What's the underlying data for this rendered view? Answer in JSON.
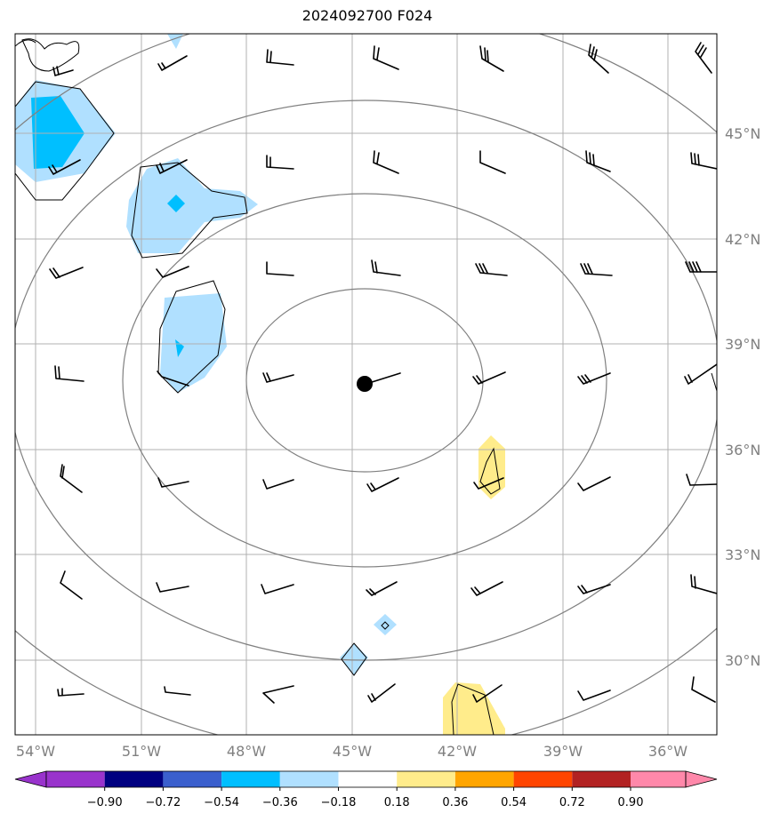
{
  "title": "2024092700 F024",
  "lon_labels": [
    "54°W",
    "51°W",
    "48°W",
    "45°W",
    "42°W",
    "39°W",
    "36°W"
  ],
  "lat_labels": [
    "45°N",
    "42°N",
    "39°N",
    "36°N",
    "33°N",
    "30°N"
  ],
  "colorbar": {
    "ticks": [
      "−0.90",
      "−0.72",
      "−0.54",
      "−0.36",
      "−0.18",
      "0.18",
      "0.36",
      "0.54",
      "0.72",
      "0.90"
    ],
    "colors": [
      "#9933cc",
      "#000080",
      "#3a5fcd",
      "#00bfff",
      "#b0e0ff",
      "#ffffff",
      "#ffec8b",
      "#ffa500",
      "#ff4500",
      "#b22222",
      "#ff88aa"
    ]
  },
  "map": {
    "extent": {
      "lon_min": -54.6,
      "lon_max": -34.6,
      "lat_min": 27.9,
      "lat_max": 47.8
    },
    "storm_center": {
      "lon": -44.6,
      "lat": 37.8
    },
    "shading_colors": {
      "light_blue": "#b0e0ff",
      "blue": "#00bfff",
      "yellow": "#ffec8b"
    },
    "line_colors": {
      "grid": "#b0b0b0",
      "rings": "#808080",
      "contours": "#000000",
      "barbs": "#000000"
    }
  }
}
